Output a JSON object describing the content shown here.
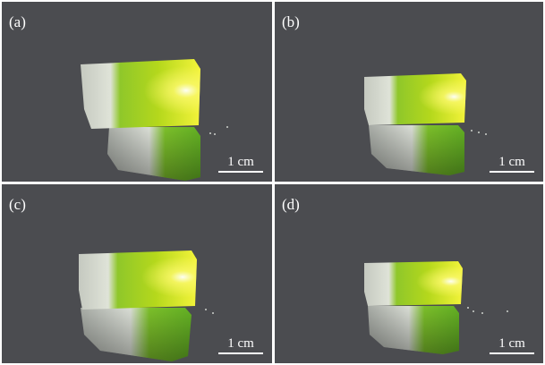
{
  "panels": [
    {
      "label": "(a)",
      "scale_label": "1 cm"
    },
    {
      "label": "(b)",
      "scale_label": "1 cm"
    },
    {
      "label": "(c)",
      "scale_label": "1 cm"
    },
    {
      "label": "(d)",
      "scale_label": "1 cm"
    }
  ],
  "colors": {
    "background": "#4b4c50",
    "divider": "#ffffff",
    "glow_yellow": "#f2f21e",
    "glow_green": "#8ec41a",
    "crystal_gray": "#c9cdc4"
  }
}
